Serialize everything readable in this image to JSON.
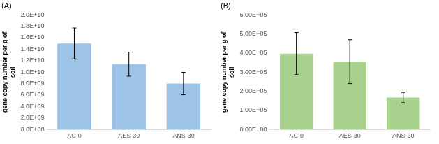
{
  "chart_data": [
    {
      "type": "bar",
      "title": "(A)",
      "y_label": [
        "gene copy number per g of",
        "soil"
      ],
      "categories": [
        "AC-0",
        "AES-30",
        "ANS-30"
      ],
      "values": [
        15000000000,
        11400000000,
        8000000000
      ],
      "errors": [
        2700000000,
        2100000000,
        1950000000
      ],
      "color": "#9dc3e6",
      "ylim": [
        0,
        20000000000
      ],
      "yticks": [
        {
          "value": 0,
          "label": "0.0E+00"
        },
        {
          "value": 2000000000,
          "label": "2.0E+09"
        },
        {
          "value": 4000000000,
          "label": "4.0E+09"
        },
        {
          "value": 6000000000,
          "label": "6.0E+09"
        },
        {
          "value": 8000000000,
          "label": "8.0E+09"
        },
        {
          "value": 10000000000,
          "label": "1.0E+10"
        },
        {
          "value": 12000000000,
          "label": "1.2E+10"
        },
        {
          "value": 14000000000,
          "label": "1.4E+10"
        },
        {
          "value": 16000000000,
          "label": "1.6E+10"
        },
        {
          "value": 18000000000,
          "label": "1.8E+10"
        },
        {
          "value": 20000000000,
          "label": "2.0E+10"
        }
      ],
      "grid": false
    },
    {
      "type": "bar",
      "title": "(B)",
      "y_label": [
        "gene copy number per g of",
        "soil"
      ],
      "categories": [
        "AC-0",
        "AES-30",
        "ANS-30"
      ],
      "values": [
        397000,
        355000,
        167000
      ],
      "errors": [
        110000,
        115000,
        27000
      ],
      "color": "#a9d18e",
      "ylim": [
        0,
        600000
      ],
      "yticks": [
        {
          "value": 0,
          "label": "0.00E+00"
        },
        {
          "value": 100000,
          "label": "1.00E+05"
        },
        {
          "value": 200000,
          "label": "2.00E+05"
        },
        {
          "value": 300000,
          "label": "3.00E+05"
        },
        {
          "value": 400000,
          "label": "4.00E+05"
        },
        {
          "value": 500000,
          "label": "5.00E+05"
        },
        {
          "value": 600000,
          "label": "6.00E+05"
        }
      ],
      "grid": false
    }
  ]
}
